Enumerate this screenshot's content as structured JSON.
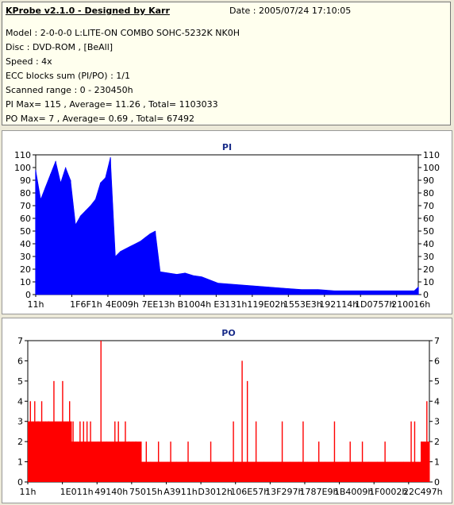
{
  "info": {
    "title": "KProbe v2.1.0 - Designed by Karr",
    "date": "Date : 2005/07/24 17:10:05",
    "lines": [
      "Model : 2-0-0-0 L:LITE-ON COMBO SOHC-5232K NK0H",
      "Disc : DVD-ROM ,  [BeAll]",
      "Speed : 4x",
      "ECC blocks sum (PI/PO) : 1/1",
      "Scanned range : 0 - 230450h",
      "PI Max= 115 , Average= 11.26 , Total= 1103033",
      "PO Max= 7 , Average= 0.69 , Total= 67492"
    ]
  },
  "chart_data": [
    {
      "type": "area",
      "title": "PI",
      "color": "#0000ff",
      "background": "#ffffff",
      "grid": false,
      "ylim": [
        0,
        110
      ],
      "yticks": [
        0,
        10,
        20,
        30,
        40,
        50,
        60,
        70,
        80,
        90,
        100,
        110
      ],
      "xlim": [
        0,
        230450
      ],
      "xtick_labels": [
        "11h",
        "1F6F1h",
        "4E009h",
        "7EE13h",
        "B1004h",
        "E3131h",
        "119E02h",
        "1553E3h",
        "192114h",
        "1D0757h",
        "210016h"
      ],
      "x": [
        0,
        3000,
        6000,
        9000,
        12000,
        15000,
        18000,
        21000,
        24000,
        27000,
        30000,
        33000,
        36000,
        39000,
        42000,
        45000,
        48000,
        51000,
        54000,
        57000,
        60000,
        63000,
        66000,
        69000,
        72000,
        75000,
        80000,
        85000,
        90000,
        95000,
        100000,
        110000,
        120000,
        130000,
        140000,
        150000,
        160000,
        170000,
        180000,
        190000,
        200000,
        210000,
        220000,
        228000,
        230450
      ],
      "y": [
        98,
        75,
        85,
        95,
        105,
        88,
        100,
        90,
        55,
        62,
        66,
        70,
        75,
        88,
        92,
        108,
        30,
        34,
        36,
        38,
        40,
        42,
        45,
        48,
        50,
        18,
        17,
        16,
        17,
        15,
        14,
        9,
        8,
        7,
        6,
        5,
        4,
        4,
        3,
        3,
        3,
        3,
        3,
        3,
        6
      ]
    },
    {
      "type": "bar",
      "title": "PO",
      "color": "#ff0000",
      "background": "#ffffff",
      "grid": false,
      "ylim": [
        0,
        7
      ],
      "yticks": [
        0,
        1,
        2,
        3,
        4,
        5,
        6,
        7
      ],
      "xlim": [
        0,
        230450
      ],
      "xtick_labels": [
        "11h",
        "1E011h",
        "49140h",
        "75015h",
        "A3911h",
        "D3012h",
        "106E57h",
        "13F297h",
        "1787E9h",
        "1B4009h",
        "1F0002h",
        "22C497h"
      ],
      "baseline": [
        3,
        3,
        3,
        3,
        3,
        2,
        2,
        2,
        2,
        2,
        2,
        2,
        2,
        1,
        1,
        1,
        1,
        1,
        1,
        1,
        1,
        1,
        1,
        1,
        1,
        1,
        1,
        1,
        1,
        1,
        1,
        1,
        1,
        1,
        1,
        1,
        1,
        1,
        1,
        1,
        1,
        1,
        1,
        1,
        1,
        2
      ],
      "spikes_x": [
        1500,
        4000,
        6000,
        8000,
        12000,
        15000,
        20000,
        24000,
        26000,
        30000,
        32000,
        34000,
        36000,
        42000,
        50000,
        52000,
        56000,
        58000,
        62000,
        68000,
        75000,
        82000,
        92000,
        105000,
        118000,
        123000,
        126000,
        131000,
        146000,
        158000,
        167000,
        176000,
        185000,
        192000,
        205000,
        220000,
        222000,
        229000
      ],
      "spikes_y": [
        4,
        4,
        3,
        4,
        3,
        5,
        5,
        4,
        3,
        3,
        3,
        3,
        3,
        7,
        3,
        3,
        3,
        2,
        2,
        2,
        2,
        2,
        2,
        2,
        3,
        6,
        5,
        3,
        3,
        3,
        2,
        3,
        2,
        2,
        2,
        3,
        3,
        4
      ]
    }
  ]
}
